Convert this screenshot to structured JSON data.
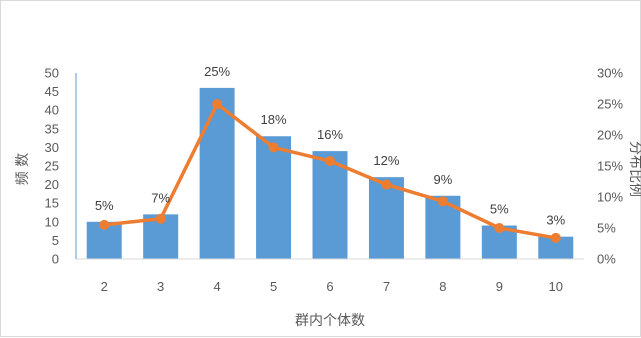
{
  "chart_data": {
    "type": "bar+line",
    "categories": [
      "2",
      "3",
      "4",
      "5",
      "6",
      "7",
      "8",
      "9",
      "10"
    ],
    "series": [
      {
        "type": "bar",
        "axis": "left",
        "values": [
          10,
          12,
          46,
          33,
          29,
          22,
          17,
          9,
          6
        ],
        "color": "#5b9bd5"
      },
      {
        "type": "line",
        "axis": "right",
        "values": [
          5.5,
          6.5,
          25,
          18,
          15.8,
          12,
          9.3,
          5,
          3.4
        ],
        "color": "#ed7d31"
      }
    ],
    "data_labels": [
      "5%",
      "7%",
      "25%",
      "18%",
      "16%",
      "12%",
      "9%",
      "5%",
      "3%"
    ],
    "xlabel": "群内个体数",
    "ylabel_left": "频 数",
    "ylabel_right": "分布比例",
    "ylim_left": [
      0,
      50
    ],
    "ylim_right": [
      0,
      30
    ],
    "yticks_left": [
      "0",
      "5",
      "10",
      "15",
      "20",
      "25",
      "30",
      "35",
      "40",
      "45",
      "50"
    ],
    "yticks_right": [
      "0%",
      "5%",
      "10%",
      "15%",
      "20%",
      "25%",
      "30%"
    ],
    "grid": false,
    "legend": "none"
  }
}
